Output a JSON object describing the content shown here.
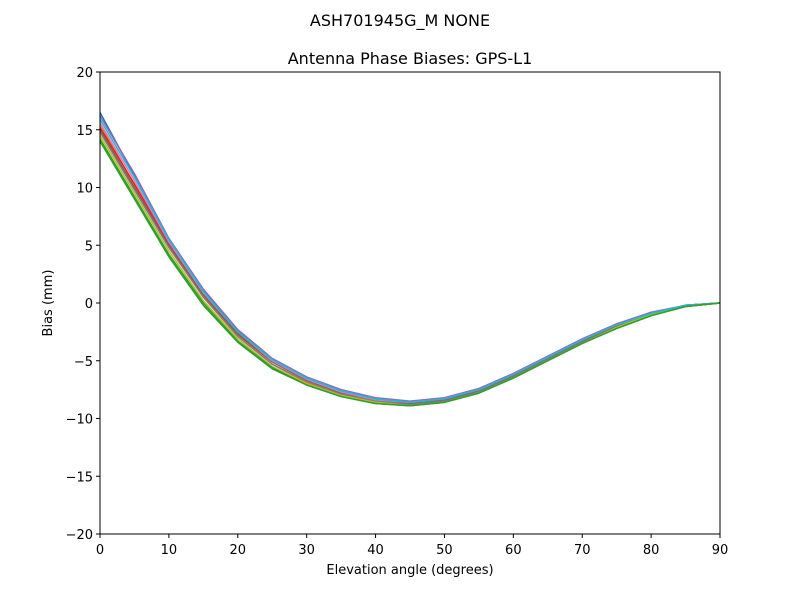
{
  "figure": {
    "suptitle": "ASH701945G_M    NONE"
  },
  "chart_data": {
    "type": "line",
    "title": "Antenna Phase Biases: GPS-L1",
    "xlabel": "Elevation angle (degrees)",
    "ylabel": "Bias (mm)",
    "xlim": [
      0,
      90
    ],
    "ylim": [
      -20,
      20
    ],
    "x_ticks": [
      0,
      10,
      20,
      30,
      40,
      50,
      60,
      70,
      80,
      90
    ],
    "y_ticks": [
      -20,
      -15,
      -10,
      -5,
      0,
      5,
      10,
      15,
      20
    ],
    "x_tick_labels": [
      "0",
      "10",
      "20",
      "30",
      "40",
      "50",
      "60",
      "70",
      "80",
      "90"
    ],
    "y_tick_labels": [
      "−20",
      "−15",
      "−10",
      "−5",
      "0",
      "5",
      "10",
      "15",
      "20"
    ],
    "grid": false,
    "legend": "none",
    "x": [
      0,
      5,
      10,
      15,
      20,
      25,
      30,
      35,
      40,
      45,
      50,
      55,
      60,
      65,
      70,
      75,
      80,
      85,
      90
    ],
    "series": [
      {
        "color": "#1f77b4",
        "values": [
          16.5,
          11.0,
          5.4,
          1.1,
          -2.4,
          -4.9,
          -6.5,
          -7.6,
          -8.3,
          -8.6,
          -8.3,
          -7.5,
          -6.2,
          -4.7,
          -3.2,
          -1.9,
          -0.9,
          -0.2,
          0.0
        ]
      },
      {
        "color": "#ff7f0e",
        "values": [
          15.5,
          10.2,
          4.9,
          0.6,
          -2.8,
          -5.3,
          -6.9,
          -7.9,
          -8.6,
          -8.8,
          -8.5,
          -7.7,
          -6.4,
          -4.9,
          -3.4,
          -2.0,
          -1.0,
          -0.3,
          0.0
        ]
      },
      {
        "color": "#2ca02c",
        "values": [
          14.0,
          9.0,
          4.0,
          -0.2,
          -3.4,
          -5.7,
          -7.1,
          -8.1,
          -8.7,
          -8.9,
          -8.6,
          -7.8,
          -6.5,
          -5.0,
          -3.5,
          -2.2,
          -1.1,
          -0.3,
          0.0
        ]
      },
      {
        "color": "#d62728",
        "values": [
          15.2,
          10.3,
          5.2,
          0.9,
          -2.6,
          -5.0,
          -6.6,
          -7.7,
          -8.4,
          -8.7,
          -8.4,
          -7.6,
          -6.3,
          -4.8,
          -3.3,
          -2.0,
          -0.9,
          -0.2,
          0.0
        ]
      },
      {
        "color": "#9467bd",
        "values": [
          16.2,
          11.2,
          5.6,
          1.2,
          -2.3,
          -4.8,
          -6.4,
          -7.5,
          -8.2,
          -8.5,
          -8.2,
          -7.4,
          -6.1,
          -4.6,
          -3.1,
          -1.8,
          -0.8,
          -0.2,
          0.0
        ]
      },
      {
        "color": "#8c564b",
        "values": [
          15.0,
          10.0,
          5.0,
          0.7,
          -2.7,
          -5.1,
          -6.7,
          -7.8,
          -8.5,
          -8.7,
          -8.4,
          -7.6,
          -6.3,
          -4.8,
          -3.3,
          -2.0,
          -0.9,
          -0.2,
          0.0
        ]
      },
      {
        "color": "#e377c2",
        "values": [
          15.6,
          10.6,
          5.3,
          0.9,
          -2.5,
          -5.0,
          -6.6,
          -7.7,
          -8.4,
          -8.6,
          -8.3,
          -7.5,
          -6.2,
          -4.7,
          -3.2,
          -1.9,
          -0.9,
          -0.2,
          0.0
        ]
      },
      {
        "color": "#7f7f7f",
        "values": [
          14.8,
          9.8,
          4.8,
          0.5,
          -2.9,
          -5.3,
          -6.8,
          -7.9,
          -8.5,
          -8.8,
          -8.5,
          -7.7,
          -6.4,
          -4.9,
          -3.4,
          -2.1,
          -1.0,
          -0.3,
          0.0
        ]
      },
      {
        "color": "#bcbd22",
        "values": [
          14.5,
          9.5,
          4.5,
          0.2,
          -3.1,
          -5.5,
          -7.0,
          -8.0,
          -8.6,
          -8.9,
          -8.6,
          -7.8,
          -6.5,
          -5.0,
          -3.5,
          -2.1,
          -1.0,
          -0.3,
          0.0
        ]
      },
      {
        "color": "#17becf",
        "values": [
          15.9,
          10.9,
          5.5,
          1.0,
          -2.5,
          -4.9,
          -6.5,
          -7.6,
          -8.3,
          -8.6,
          -8.3,
          -7.5,
          -6.2,
          -4.7,
          -3.2,
          -1.9,
          -0.9,
          -0.2,
          0.0
        ]
      },
      {
        "color": "#2ca02c",
        "values": [
          14.2,
          9.2,
          4.2,
          0.0,
          -3.3,
          -5.6,
          -7.1,
          -8.1,
          -8.7,
          -8.9,
          -8.6,
          -7.8,
          -6.5,
          -5.0,
          -3.5,
          -2.2,
          -1.1,
          -0.3,
          0.0
        ]
      }
    ]
  }
}
